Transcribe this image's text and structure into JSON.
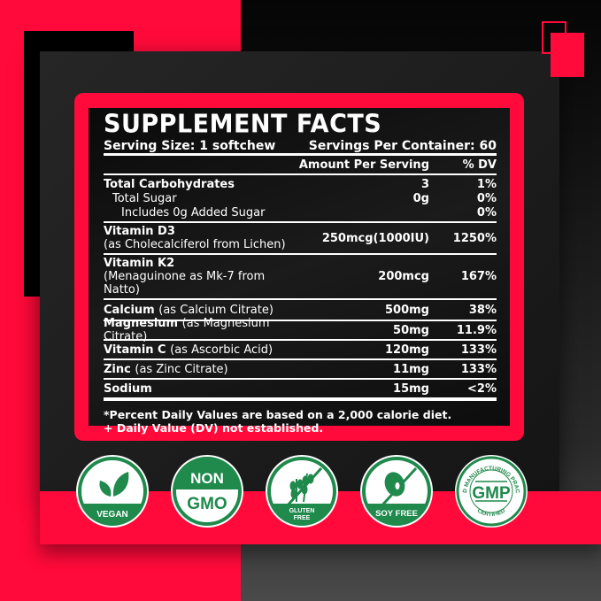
{
  "colors": {
    "accent": "#ff0a3a",
    "badge_green": "#1f8a4c"
  },
  "facts": {
    "title": "SUPPLEMENT FACTS",
    "serving_size": "Serving Size: 1 softchew",
    "servings_per_container": "Servings Per Container: 60",
    "header_amount": "Amount Per Serving",
    "header_dv": "% DV",
    "rows": [
      {
        "name": "Total Carbohydrates",
        "amount": "3",
        "dv": "1%"
      },
      {
        "name": "Total Sugar",
        "amount": "0g",
        "dv": "0%"
      },
      {
        "name": "Includes 0g Added Sugar",
        "amount": "",
        "dv": "0%"
      },
      {
        "name": "Vitamin D3",
        "source": "(as Cholecalciferol from Lichen)",
        "amount": "250mcg(1000IU)",
        "dv": "1250%"
      },
      {
        "name": "Vitamin K2",
        "source": "(Menaguinone as Mk-7 from Natto)",
        "amount": "200mcg",
        "dv": "167%"
      },
      {
        "name": "Calcium",
        "source": "(as Calcium Citrate)",
        "amount": "500mg",
        "dv": "38%"
      },
      {
        "name": "Magnesium",
        "source": "(as Magnesium Citrate)",
        "amount": "50mg",
        "dv": "11.9%"
      },
      {
        "name": "Vitamin C",
        "source": "(as Ascorbic Acid)",
        "amount": "120mg",
        "dv": "133%"
      },
      {
        "name": "Zinc",
        "source": "(as Zinc Citrate)",
        "amount": "11mg",
        "dv": "133%"
      },
      {
        "name": "Sodium",
        "amount": "15mg",
        "dv": "<2%"
      }
    ],
    "footnote_1": "*Percent Daily Values are based on a 2,000 calorie diet.",
    "footnote_2": "+ Daily Value (DV) not established."
  },
  "badges": [
    {
      "icon": "leaf-icon",
      "label": "VEGAN"
    },
    {
      "icon": "none",
      "label_top": "NON",
      "label_bottom": "GMO"
    },
    {
      "icon": "wheat-crossed-icon",
      "label": "GLUTEN",
      "label2": "FREE"
    },
    {
      "icon": "soybean-crossed-icon",
      "label": "SOY FREE"
    },
    {
      "icon": "gmp-seal-icon",
      "label": "GMP",
      "ring_text": "GOOD MANUFACTURING PRACTICE",
      "ring_bottom": "CERTIFIED"
    }
  ]
}
